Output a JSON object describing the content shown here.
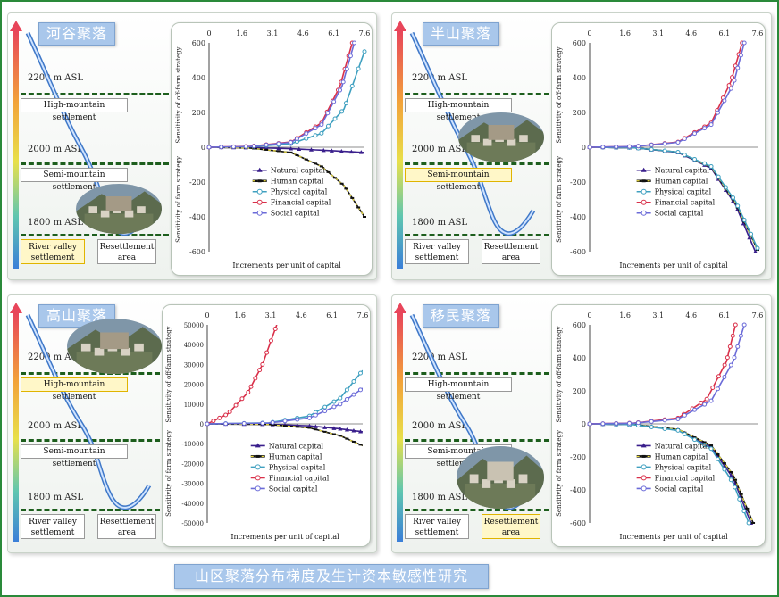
{
  "caption": "山区聚落分布梯度及生计资本敏感性研究",
  "panels": [
    {
      "title": "河谷聚落",
      "altitudes": [
        "2200 m ASL",
        "2000 m ASL",
        "1800 m ASL"
      ],
      "settlements": [
        "High-mountain settlement",
        "Semi-mountain settlement",
        "River valley settlement",
        "Resettlement area"
      ],
      "highlight": "River valley settlement"
    },
    {
      "title": "半山聚落",
      "altitudes": [
        "2200 m ASL",
        "2000 m ASL",
        "1800 m ASL"
      ],
      "settlements": [
        "High-mountain settlement",
        "Semi-mountain settlement",
        "River valley settlement",
        "Resettlement area"
      ],
      "highlight": "Semi-mountain settlement"
    },
    {
      "title": "高山聚落",
      "altitudes": [
        "2200 m ASL",
        "2000 m ASL",
        "1800 m ASL"
      ],
      "settlements": [
        "High-mountain settlement",
        "Semi-mountain settlement",
        "River valley settlement",
        "Resettlement area"
      ],
      "highlight": "High-mountain settlement"
    },
    {
      "title": "移民聚落",
      "altitudes": [
        "2200 m ASL",
        "2000 m ASL",
        "1800 m ASL"
      ],
      "settlements": [
        "High-mountain settlement",
        "Semi-mountain settlement",
        "River valley settlement",
        "Resettlement area"
      ],
      "highlight": "Resettlement area"
    }
  ],
  "colors": {
    "natural": "#3a1f8c",
    "human": "#111111",
    "physical": "#3fa0c0",
    "financial": "#d9304a",
    "social": "#6b6bd8",
    "human_dash": "#f0e040"
  },
  "chart_data": [
    {
      "type": "line",
      "xlabel": "Increments per unit of capital",
      "ylabel_top": "Sensitivity of off-farm strategy",
      "ylabel_bottom": "Sensitivity of farm strategy",
      "xticks": [
        "0",
        "1.6",
        "3.1",
        "4.6",
        "6.1",
        "7.6"
      ],
      "xlim": [
        0,
        7.6
      ],
      "ylim": [
        -600,
        600
      ],
      "yticks": [
        600,
        400,
        200,
        0,
        -200,
        -400,
        -600
      ],
      "series": [
        {
          "name": "Natural capital",
          "points": [
            [
              0,
              0
            ],
            [
              2,
              -2
            ],
            [
              4,
              -8
            ],
            [
              6,
              -20
            ],
            [
              7.6,
              -30
            ]
          ]
        },
        {
          "name": "Human capital",
          "points": [
            [
              0,
              0
            ],
            [
              2,
              -5
            ],
            [
              4,
              -30
            ],
            [
              5.5,
              -110
            ],
            [
              6.6,
              -220
            ],
            [
              7.6,
              -400
            ]
          ]
        },
        {
          "name": "Physical capital",
          "points": [
            [
              0,
              0
            ],
            [
              2,
              3
            ],
            [
              4,
              20
            ],
            [
              5.5,
              80
            ],
            [
              6.6,
              220
            ],
            [
              7.6,
              550
            ]
          ]
        },
        {
          "name": "Financial capital",
          "points": [
            [
              0,
              0
            ],
            [
              2,
              5
            ],
            [
              4,
              30
            ],
            [
              5.5,
              140
            ],
            [
              6.4,
              350
            ],
            [
              7,
              600
            ]
          ]
        },
        {
          "name": "Social capital",
          "points": [
            [
              0,
              0
            ],
            [
              2,
              4
            ],
            [
              4,
              28
            ],
            [
              5.5,
              130
            ],
            [
              6.5,
              350
            ],
            [
              7.1,
              600
            ]
          ]
        }
      ]
    },
    {
      "type": "line",
      "xlabel": "Increments per unit of capital",
      "ylabel_top": "Sensitivity of off-farm strategy",
      "ylabel_bottom": "Sensitivity of farm strategy",
      "xticks": [
        "0",
        "1.6",
        "3.1",
        "4.6",
        "6.1",
        "7.6"
      ],
      "xlim": [
        0,
        7.6
      ],
      "ylim": [
        -600,
        600
      ],
      "yticks": [
        600,
        400,
        200,
        0,
        -200,
        -400,
        -600
      ],
      "series": [
        {
          "name": "Natural capital",
          "points": [
            [
              0,
              0
            ],
            [
              2,
              -3
            ],
            [
              4,
              -30
            ],
            [
              5.5,
              -120
            ],
            [
              6.6,
              -330
            ],
            [
              7.5,
              -600
            ]
          ]
        },
        {
          "name": "Human capital",
          "points": [
            [
              0,
              0
            ],
            [
              2,
              -3
            ],
            [
              4,
              -28
            ],
            [
              5.5,
              -115
            ],
            [
              6.6,
              -320
            ],
            [
              7.6,
              -590
            ]
          ]
        },
        {
          "name": "Physical capital",
          "points": [
            [
              0,
              0
            ],
            [
              2,
              -3
            ],
            [
              4,
              -28
            ],
            [
              5.5,
              -110
            ],
            [
              6.6,
              -310
            ],
            [
              7.6,
              -580
            ]
          ]
        },
        {
          "name": "Financial capital",
          "points": [
            [
              0,
              0
            ],
            [
              2,
              4
            ],
            [
              4,
              30
            ],
            [
              5.5,
              140
            ],
            [
              6.4,
              380
            ],
            [
              6.9,
              600
            ]
          ]
        },
        {
          "name": "Social capital",
          "points": [
            [
              0,
              0
            ],
            [
              2,
              4
            ],
            [
              4,
              28
            ],
            [
              5.5,
              130
            ],
            [
              6.5,
              360
            ],
            [
              7.0,
              600
            ]
          ]
        }
      ]
    },
    {
      "type": "line",
      "xlabel": "Increments per unit of capital",
      "ylabel_top": "Sensitivity of off-farm strategy",
      "ylabel_bottom": "Sensitivity of farm strategy",
      "xticks": [
        "0",
        "1.6",
        "3.1",
        "4.6",
        "6.1",
        "7.6"
      ],
      "xlim": [
        0,
        7.6
      ],
      "ylim": [
        -50000,
        50000
      ],
      "yticks": [
        50000,
        40000,
        30000,
        20000,
        10000,
        0,
        -10000,
        -20000,
        -30000,
        -40000,
        -50000
      ],
      "series": [
        {
          "name": "Natural capital",
          "points": [
            [
              0,
              0
            ],
            [
              3,
              -200
            ],
            [
              5,
              -1000
            ],
            [
              6.5,
              -2500
            ],
            [
              7.6,
              -4000
            ]
          ]
        },
        {
          "name": "Human capital",
          "points": [
            [
              0,
              0
            ],
            [
              3,
              -300
            ],
            [
              5,
              -2000
            ],
            [
              6.5,
              -6000
            ],
            [
              7.6,
              -11000
            ]
          ]
        },
        {
          "name": "Physical capital",
          "points": [
            [
              0,
              0
            ],
            [
              3,
              500
            ],
            [
              5,
              4000
            ],
            [
              6.5,
              13000
            ],
            [
              7.6,
              27000
            ]
          ]
        },
        {
          "name": "Financial capital",
          "points": [
            [
              0,
              0
            ],
            [
              1,
              5000
            ],
            [
              2,
              16000
            ],
            [
              2.7,
              30000
            ],
            [
              3.4,
              50000
            ]
          ]
        },
        {
          "name": "Social capital",
          "points": [
            [
              0,
              0
            ],
            [
              3,
              400
            ],
            [
              5,
              3000
            ],
            [
              6.5,
              10000
            ],
            [
              7.6,
              18000
            ]
          ]
        }
      ]
    },
    {
      "type": "line",
      "xlabel": "Increments per unit of capital",
      "ylabel_top": "Sensitivity of off-farm strategy",
      "ylabel_bottom": "Sensitivity of farm strategy",
      "xticks": [
        "0",
        "1.6",
        "3.1",
        "4.6",
        "6.1",
        "7.6"
      ],
      "xlim": [
        0,
        7.6
      ],
      "ylim": [
        -600,
        600
      ],
      "yticks": [
        600,
        400,
        200,
        0,
        -200,
        -400,
        -600
      ],
      "series": [
        {
          "name": "Natural capital",
          "points": [
            [
              0,
              0
            ],
            [
              2,
              -4
            ],
            [
              4,
              -35
            ],
            [
              5.5,
              -140
            ],
            [
              6.5,
              -330
            ],
            [
              7.3,
              -600
            ]
          ]
        },
        {
          "name": "Human capital",
          "points": [
            [
              0,
              0
            ],
            [
              2,
              -4
            ],
            [
              4,
              -33
            ],
            [
              5.5,
              -130
            ],
            [
              6.5,
              -310
            ],
            [
              7.4,
              -600
            ]
          ]
        },
        {
          "name": "Physical capital",
          "points": [
            [
              0,
              0
            ],
            [
              2,
              -5
            ],
            [
              4,
              -40
            ],
            [
              5.5,
              -150
            ],
            [
              6.5,
              -360
            ],
            [
              7.2,
              -600
            ]
          ]
        },
        {
          "name": "Financial capital",
          "points": [
            [
              0,
              0
            ],
            [
              2,
              5
            ],
            [
              4,
              35
            ],
            [
              5.3,
              150
            ],
            [
              6.2,
              380
            ],
            [
              6.6,
              600
            ]
          ]
        },
        {
          "name": "Social capital",
          "points": [
            [
              0,
              0
            ],
            [
              2,
              4
            ],
            [
              4,
              30
            ],
            [
              5.5,
              140
            ],
            [
              6.5,
              380
            ],
            [
              7.0,
              600
            ]
          ]
        }
      ]
    }
  ]
}
